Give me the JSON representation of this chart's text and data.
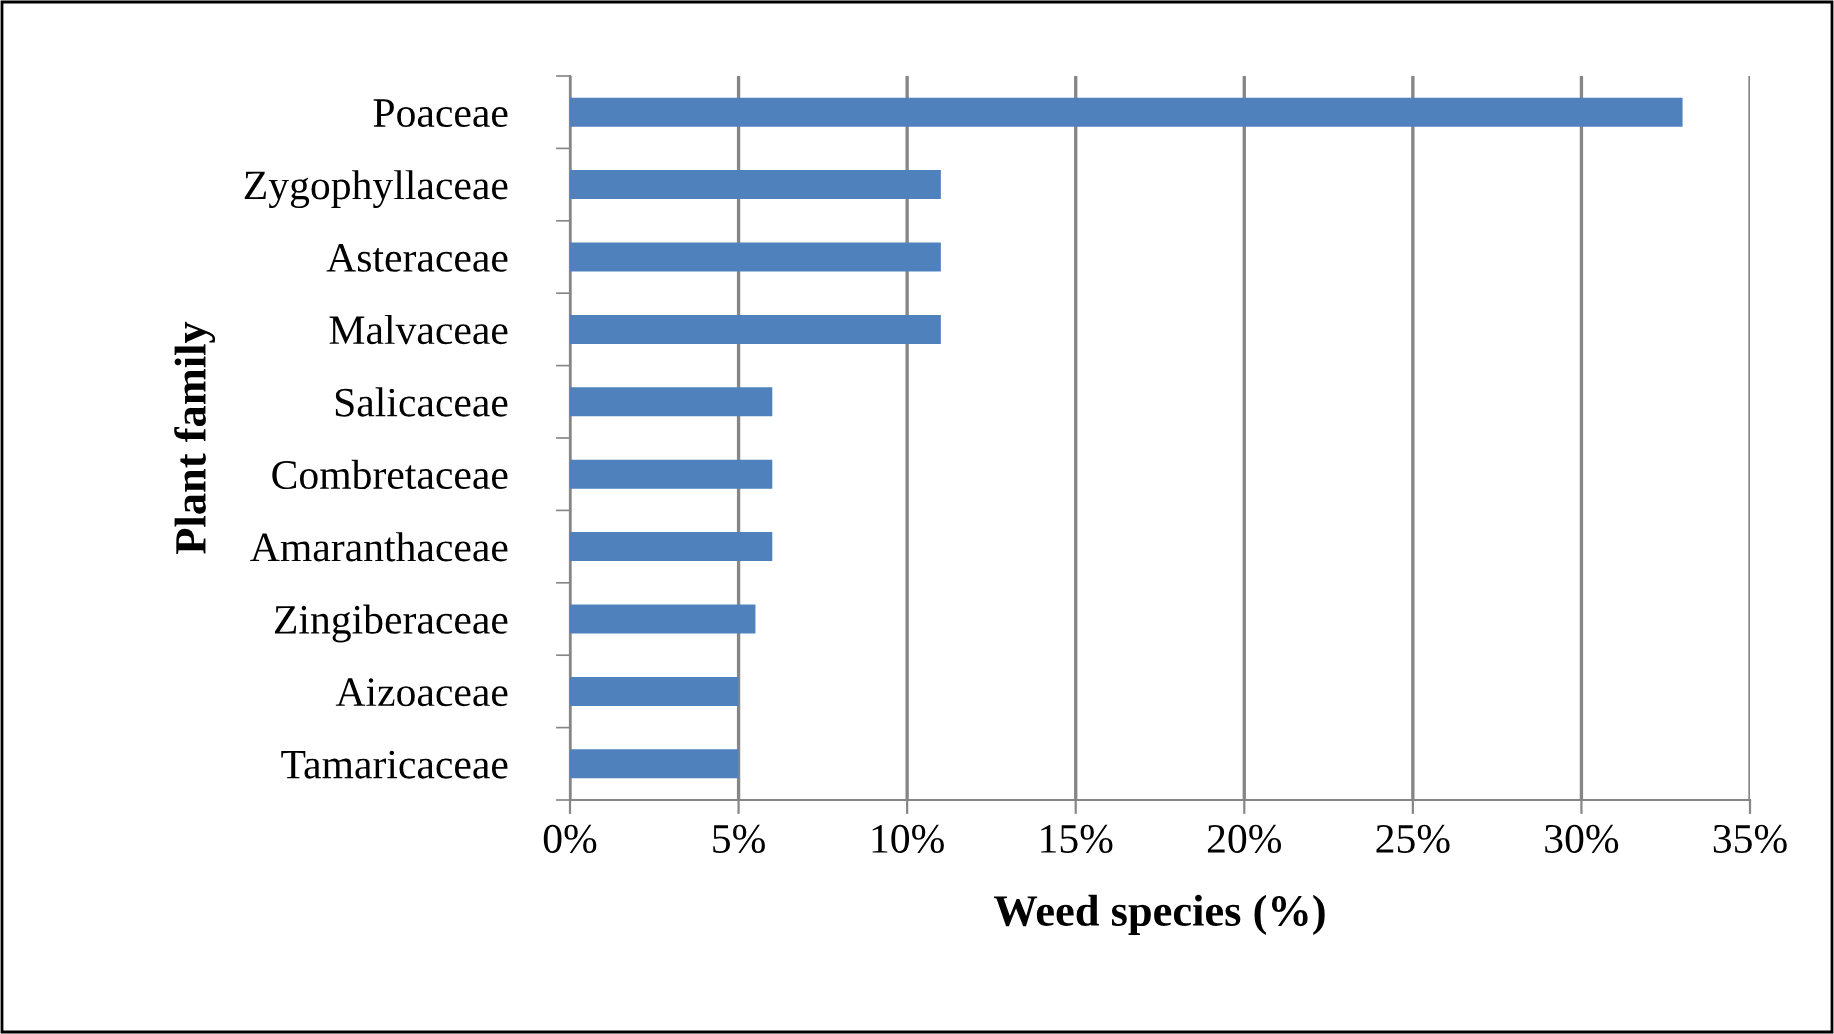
{
  "chart_data": {
    "type": "bar",
    "orientation": "horizontal",
    "categories": [
      "Poaceae",
      "Zygophyllaceae",
      "Asteraceae",
      "Malvaceae",
      "Salicaceae",
      "Combretaceae",
      "Amaranthaceae",
      "Zingiberaceae",
      "Aizoaceae",
      "Tamaricaceae"
    ],
    "values": [
      33,
      11,
      11,
      11,
      6,
      6,
      6,
      5.5,
      5,
      5
    ],
    "color": "#4f81bd",
    "xlabel": "Weed species (%)",
    "ylabel": "Plant family",
    "xlim": [
      0,
      35
    ],
    "xticks": [
      {
        "value": 0,
        "label": "0%"
      },
      {
        "value": 5,
        "label": "5%"
      },
      {
        "value": 10,
        "label": "10%"
      },
      {
        "value": 15,
        "label": "15%"
      },
      {
        "value": 20,
        "label": "20%"
      },
      {
        "value": 25,
        "label": "25%"
      },
      {
        "value": 30,
        "label": "30%"
      },
      {
        "value": 35,
        "label": "35%"
      }
    ],
    "grid": "x",
    "legend": false
  }
}
